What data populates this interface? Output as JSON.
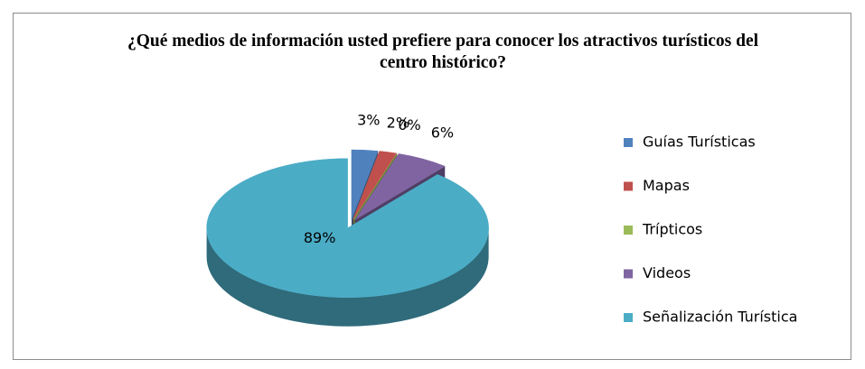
{
  "chart_data": {
    "type": "pie3d",
    "title": "¿Qué medios de información usted prefiere para conocer los atractivos turísticos del centro histórico?",
    "categories": [
      "Guías Turísticas",
      "Mapas",
      "Trípticos",
      "Videos",
      "Señalización Turística"
    ],
    "values": [
      3,
      2,
      0,
      6,
      89
    ],
    "value_labels": [
      "3%",
      "2%",
      "0%",
      "6%",
      "89%"
    ],
    "colors": [
      "#4f81bd",
      "#c0504d",
      "#9bbb59",
      "#8064a2",
      "#4bacc6"
    ],
    "legend": "right"
  }
}
